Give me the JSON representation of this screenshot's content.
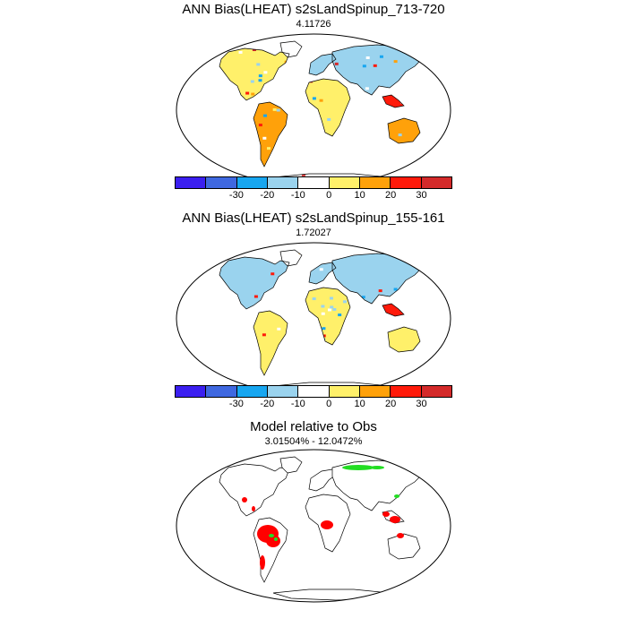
{
  "panels": [
    {
      "title": "ANN Bias(LHEAT) s2sLandSpinup_713-720",
      "subtitle": "4.11726"
    },
    {
      "title": "ANN Bias(LHEAT) s2sLandSpinup_155-161",
      "subtitle": "1.72027"
    },
    {
      "title": "Model relative to Obs",
      "subtitle": "3.01504% - 12.0472%"
    }
  ],
  "colorbar": {
    "colors": [
      "#3b1ff0",
      "#3f68e0",
      "#17a6f0",
      "#9ad3ee",
      "#ffffff",
      "#fff06a",
      "#ffa10a",
      "#ff1a0a",
      "#d42a2a"
    ],
    "labels": [
      "-30",
      "-20",
      "-10",
      "0",
      "10",
      "20",
      "30"
    ]
  },
  "legend_colors": {
    "model_better": "#22dd22",
    "model_worse": "#ff0000"
  }
}
